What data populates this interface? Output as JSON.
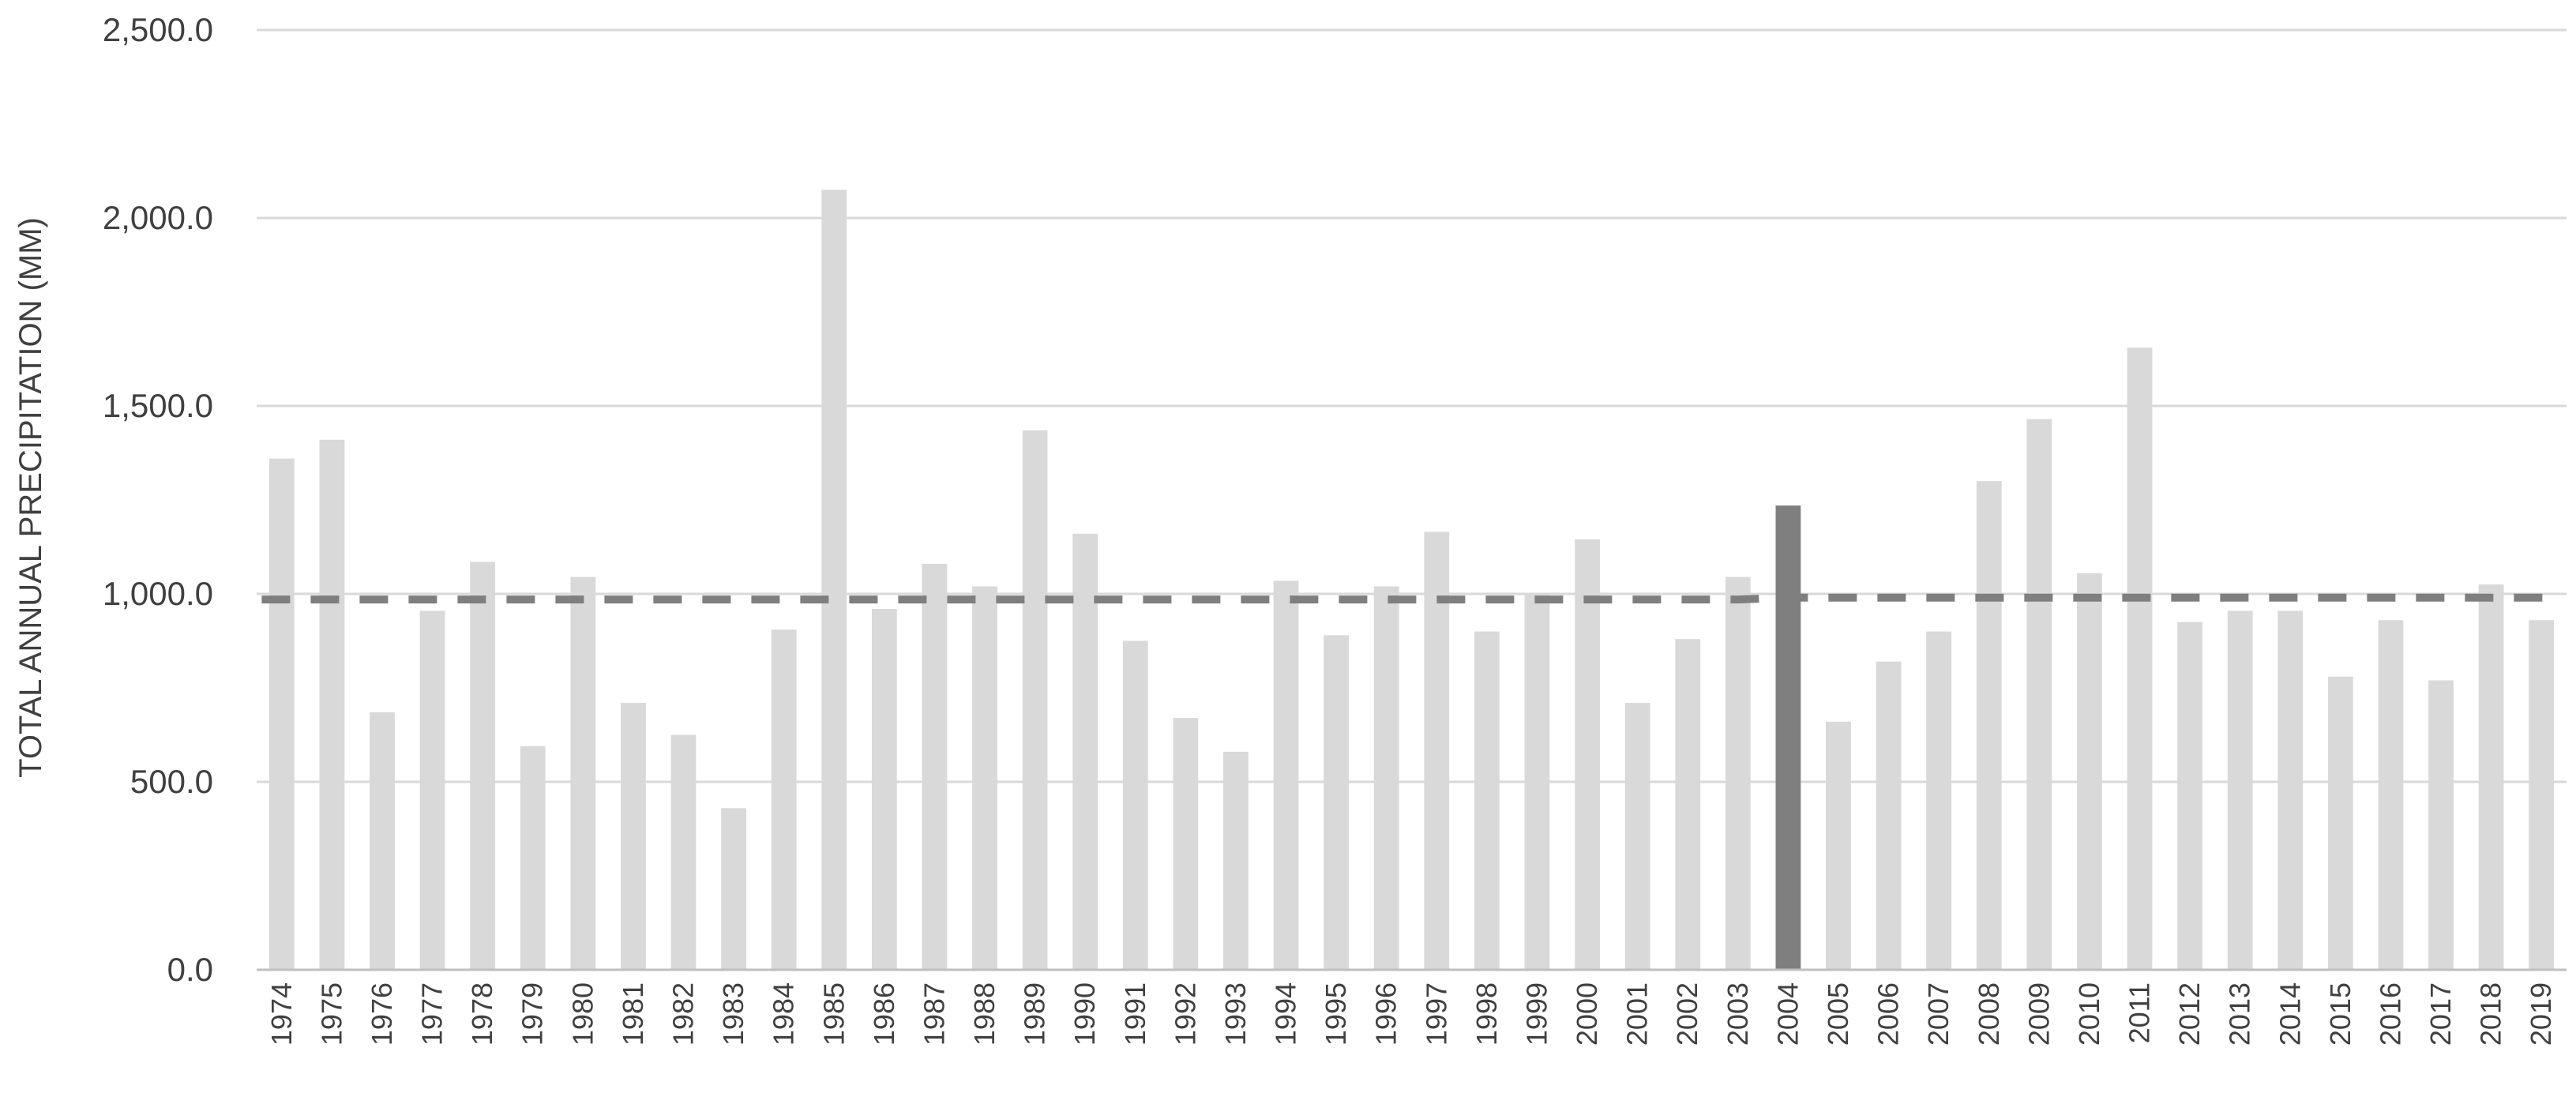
{
  "chart_data": {
    "type": "bar",
    "title": "",
    "xlabel": "",
    "ylabel": "TOTAL ANNUAL PRECIPITATION (MM)",
    "ylim": [
      0,
      2500
    ],
    "yticks": [
      0,
      500,
      1000,
      1500,
      2000,
      2500
    ],
    "ytick_labels": [
      "0.0",
      "500.0",
      "1,000.0",
      "1,500.0",
      "2,000.0",
      "2,500.0"
    ],
    "grid": true,
    "legend": "none",
    "colors": {
      "bar": "#d9d9d9",
      "highlight_bar": "#7f7f7f",
      "reference_line": "#7f7f7f",
      "gridline": "#d9d9d9",
      "axis": "#bfbfbf",
      "text": "#404040"
    },
    "categories": [
      "1974",
      "1975",
      "1976",
      "1977",
      "1978",
      "1979",
      "1980",
      "1981",
      "1982",
      "1983",
      "1984",
      "1985",
      "1986",
      "1987",
      "1988",
      "1989",
      "1990",
      "1991",
      "1992",
      "1993",
      "1994",
      "1995",
      "1996",
      "1997",
      "1998",
      "1999",
      "2000",
      "2001",
      "2002",
      "2003",
      "2004",
      "2005",
      "2006",
      "2007",
      "2008",
      "2009",
      "2010",
      "2011",
      "2012",
      "2013",
      "2014",
      "2015",
      "2016",
      "2017",
      "2018",
      "2019"
    ],
    "series": [
      {
        "values": [
          1360,
          1410,
          685,
          955,
          1085,
          595,
          1045,
          710,
          625,
          430,
          905,
          2075,
          960,
          1080,
          1020,
          1435,
          1160,
          875,
          670,
          580,
          1035,
          890,
          1020,
          1165,
          900,
          1000,
          1145,
          710,
          880,
          1045,
          1235,
          660,
          820,
          900,
          1300,
          1465,
          1055,
          1655,
          925,
          955,
          955,
          780,
          930,
          770,
          1025,
          930
        ]
      }
    ],
    "highlight_category": "2004",
    "reference_line": {
      "style": "dashed",
      "values": [
        985,
        985,
        985,
        985,
        985,
        985,
        985,
        985,
        985,
        985,
        985,
        985,
        985,
        985,
        985,
        985,
        985,
        985,
        985,
        985,
        985,
        985,
        985,
        985,
        985,
        985,
        985,
        985,
        985,
        985,
        990,
        990,
        990,
        990,
        990,
        990,
        990,
        990,
        990,
        990,
        990,
        990,
        990,
        990,
        990,
        990
      ]
    }
  }
}
